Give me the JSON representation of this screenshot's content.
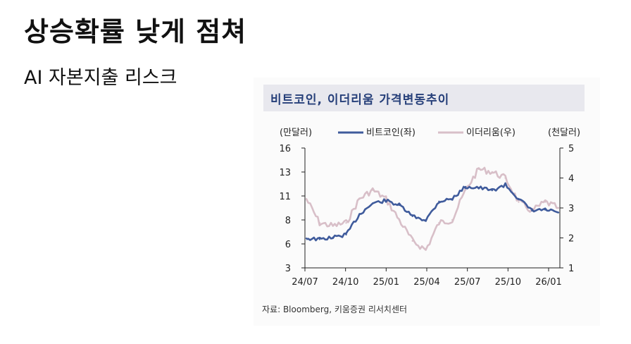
{
  "slide": {
    "title": "상승확률 낮게 점쳐",
    "subtitle": "AI 자본지출 리스크"
  },
  "panel": {
    "title": "비트코인, 이더리움  가격변동추이",
    "source": "자료: Bloomberg, 키움증권 리서치센터"
  },
  "colors": {
    "bitcoin": "#3f5b9c",
    "ethereum": "#d8bfc8",
    "header": "#27407a"
  },
  "chart_data": {
    "type": "line",
    "title": "비트코인, 이더리움  가격변동추이",
    "y_left_label": "(만달러)",
    "y_right_label": "(천달러)",
    "x_ticks": [
      "24/07",
      "24/10",
      "25/01",
      "25/04",
      "25/07",
      "25/10",
      "26/01"
    ],
    "y_left_ticks": [
      "16",
      "13",
      "11",
      "8",
      "6",
      "3"
    ],
    "y_left_tick_values": [
      16,
      13,
      11,
      8,
      6,
      3
    ],
    "y_right_ticks": [
      "5",
      "4",
      "3",
      "2",
      "1"
    ],
    "y_right_tick_values": [
      5,
      4,
      3,
      2,
      1
    ],
    "ylim_left": [
      3,
      16
    ],
    "ylim_right": [
      1,
      5
    ],
    "x": [
      "24/07",
      "24/08",
      "24/09",
      "24/10",
      "24/11",
      "24/12",
      "25/01",
      "25/02",
      "25/03",
      "25/04",
      "25/05",
      "25/06",
      "25/07",
      "25/08",
      "25/09",
      "25/10",
      "25/11",
      "25/12",
      "26/01",
      "26/02"
    ],
    "series": [
      {
        "name": "비트코인(좌)",
        "axis": "left",
        "values": [
          6.2,
          6.1,
          6.3,
          6.6,
          8.8,
          10.0,
          10.3,
          9.8,
          8.6,
          8.2,
          10.2,
          10.5,
          11.8,
          11.7,
          11.4,
          12.0,
          10.5,
          9.2,
          9.3,
          9.0
        ]
      },
      {
        "name": "이더리움(우)",
        "axis": "right",
        "values": [
          3.3,
          2.5,
          2.4,
          2.5,
          3.3,
          3.6,
          3.3,
          2.6,
          1.9,
          1.6,
          2.5,
          2.6,
          3.6,
          4.3,
          4.2,
          4.0,
          3.2,
          2.9,
          3.2,
          3.0
        ]
      }
    ]
  }
}
